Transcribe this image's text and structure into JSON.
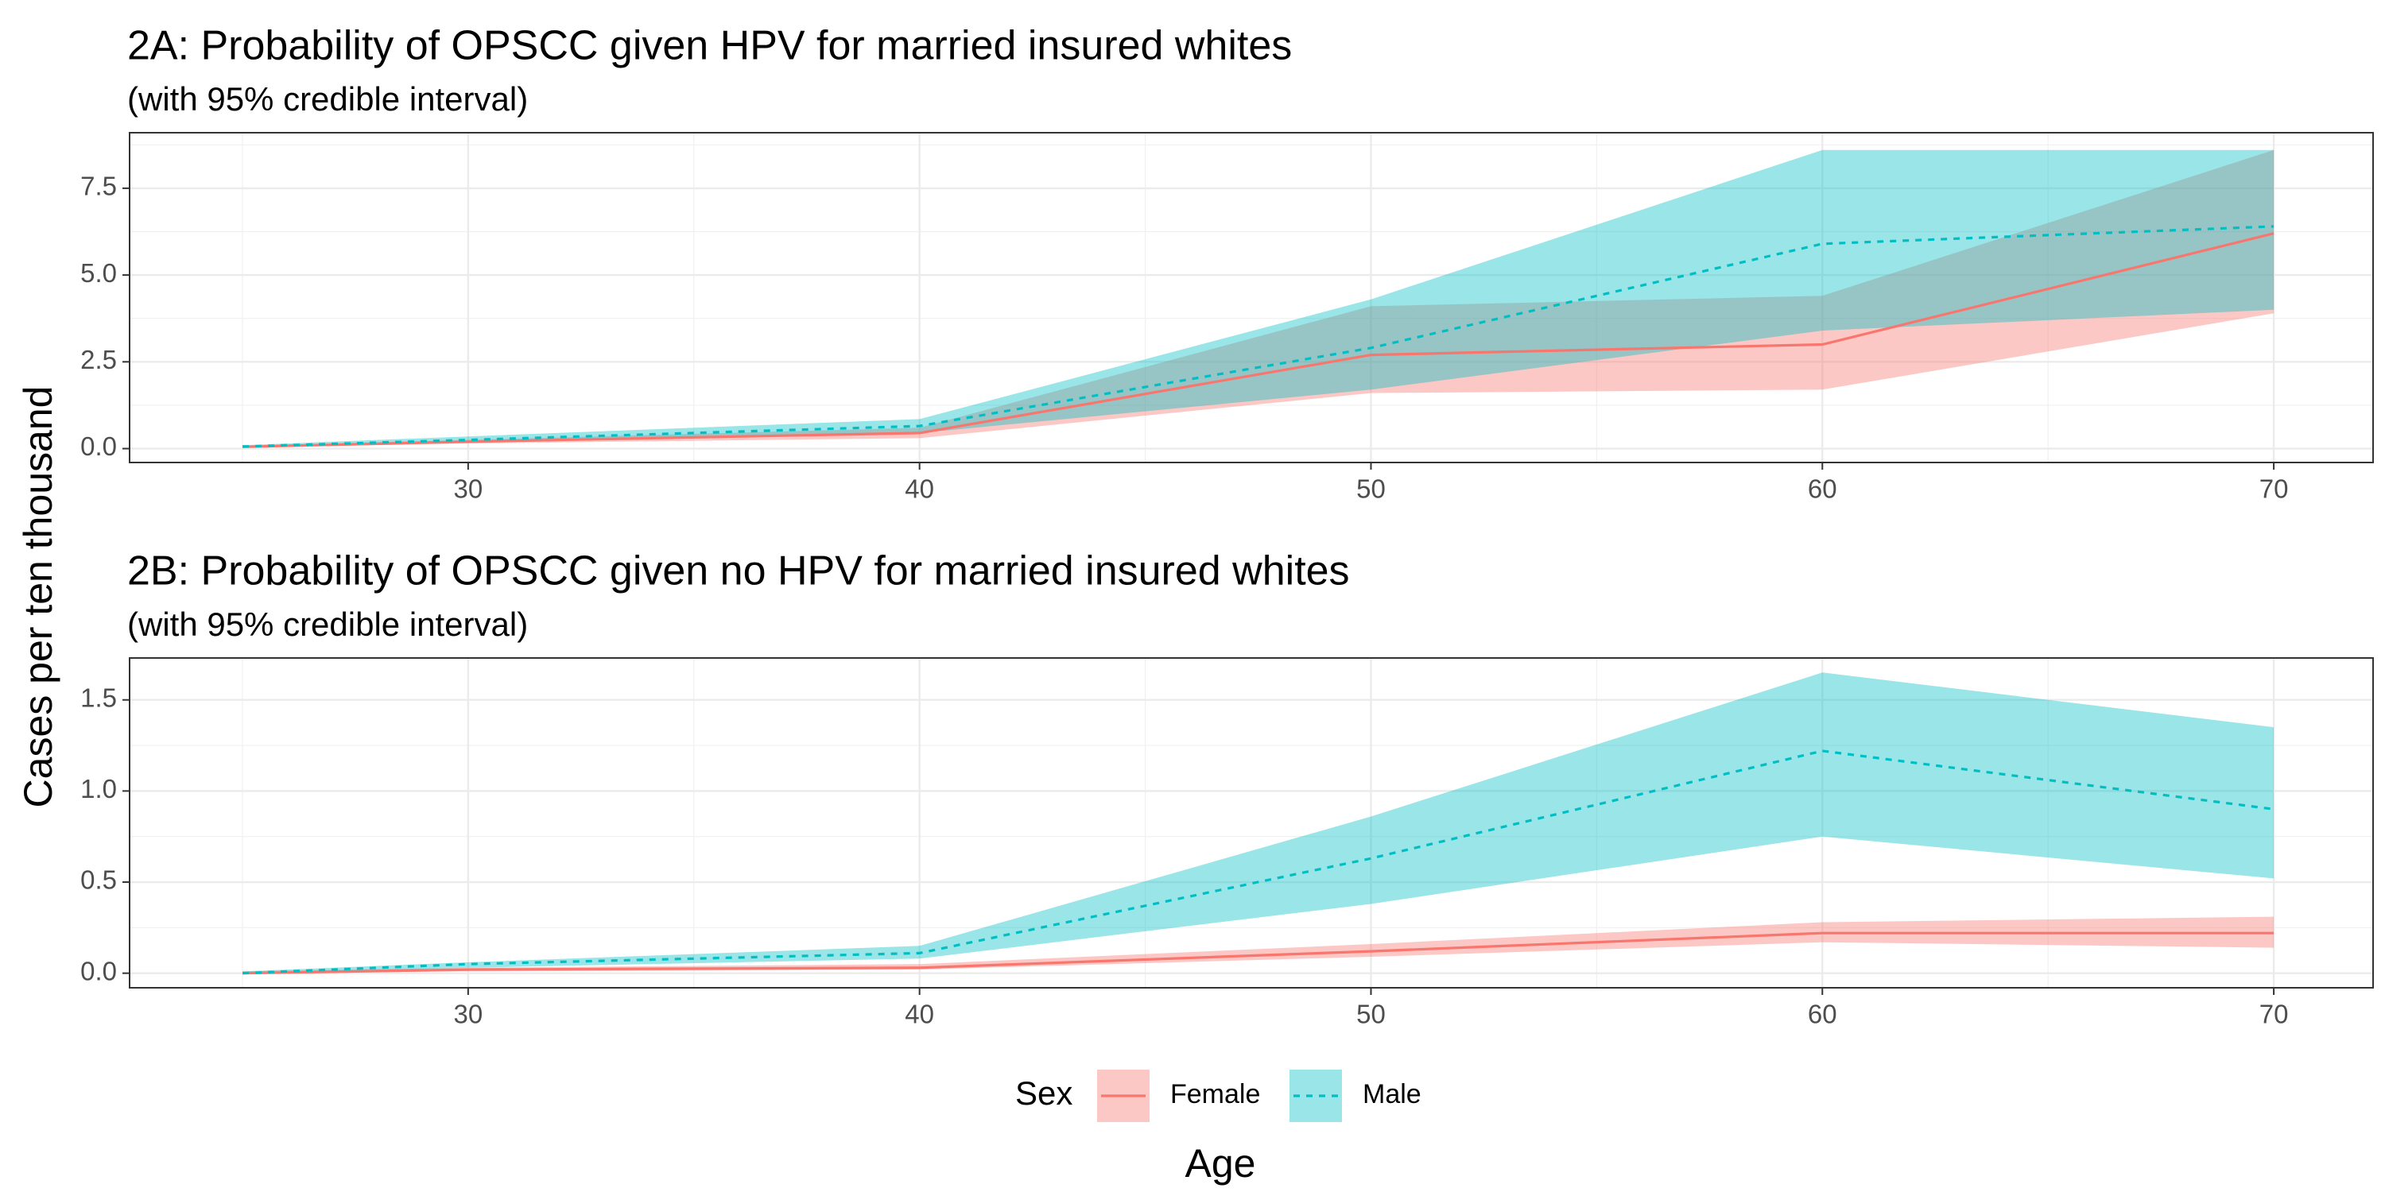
{
  "chart_data": {
    "type": "line",
    "shared_ylabel": "Cases per ten thousand",
    "shared_xlabel": "Age",
    "legend": {
      "title": "Sex",
      "placement": "bottom",
      "entries": [
        {
          "name": "Female",
          "line": "solid"
        },
        {
          "name": "Male",
          "line": "dashed"
        }
      ]
    },
    "colors": {
      "Female": "#F8766D",
      "Male": "#00BFC4"
    },
    "grid": true,
    "panels": [
      {
        "id": "2A",
        "title": "2A: Probability of OPSCC given HPV for married insured whites",
        "subtitle": "(with 95% credible interval)",
        "xlim": [
          22.5,
          72.2
        ],
        "ylim": [
          -0.4,
          9.1
        ],
        "x_ticks": [
          30,
          40,
          50,
          60,
          70
        ],
        "y_ticks": [
          0.0,
          2.5,
          5.0,
          7.5
        ],
        "y_tick_labels": [
          "0.0",
          "2.5",
          "5.0",
          "7.5"
        ],
        "x": [
          25,
          30,
          40,
          50,
          60,
          70
        ],
        "series": [
          {
            "name": "Female",
            "values": [
              0.05,
              0.2,
              0.45,
              2.7,
              3.0,
              6.2
            ],
            "lower": [
              0.03,
              0.15,
              0.3,
              1.6,
              1.7,
              3.9
            ],
            "upper": [
              0.08,
              0.25,
              0.6,
              4.1,
              4.4,
              8.6
            ]
          },
          {
            "name": "Male",
            "values": [
              0.06,
              0.25,
              0.65,
              2.9,
              5.9,
              6.4
            ],
            "lower": [
              0.04,
              0.2,
              0.45,
              1.7,
              3.4,
              4.0
            ],
            "upper": [
              0.1,
              0.35,
              0.85,
              4.3,
              8.6,
              8.6
            ]
          }
        ]
      },
      {
        "id": "2B",
        "title": "2B: Probability of OPSCC given no HPV for married insured whites",
        "subtitle": "(with 95% credible interval)",
        "xlim": [
          22.5,
          72.2
        ],
        "ylim": [
          -0.08,
          1.73
        ],
        "x_ticks": [
          30,
          40,
          50,
          60,
          70
        ],
        "y_ticks": [
          0.0,
          0.5,
          1.0,
          1.5
        ],
        "y_tick_labels": [
          "0.0",
          "0.5",
          "1.0",
          "1.5"
        ],
        "x": [
          25,
          30,
          40,
          50,
          60,
          70
        ],
        "series": [
          {
            "name": "Female",
            "values": [
              0.0,
              0.02,
              0.03,
              0.12,
              0.22,
              0.22
            ],
            "lower": [
              0.0,
              0.01,
              0.02,
              0.09,
              0.17,
              0.14
            ],
            "upper": [
              0.01,
              0.03,
              0.05,
              0.16,
              0.28,
              0.31
            ]
          },
          {
            "name": "Male",
            "values": [
              0.0,
              0.05,
              0.11,
              0.63,
              1.22,
              0.9
            ],
            "lower": [
              0.0,
              0.03,
              0.08,
              0.38,
              0.75,
              0.52
            ],
            "upper": [
              0.01,
              0.06,
              0.15,
              0.86,
              1.65,
              1.35
            ]
          }
        ]
      }
    ]
  }
}
